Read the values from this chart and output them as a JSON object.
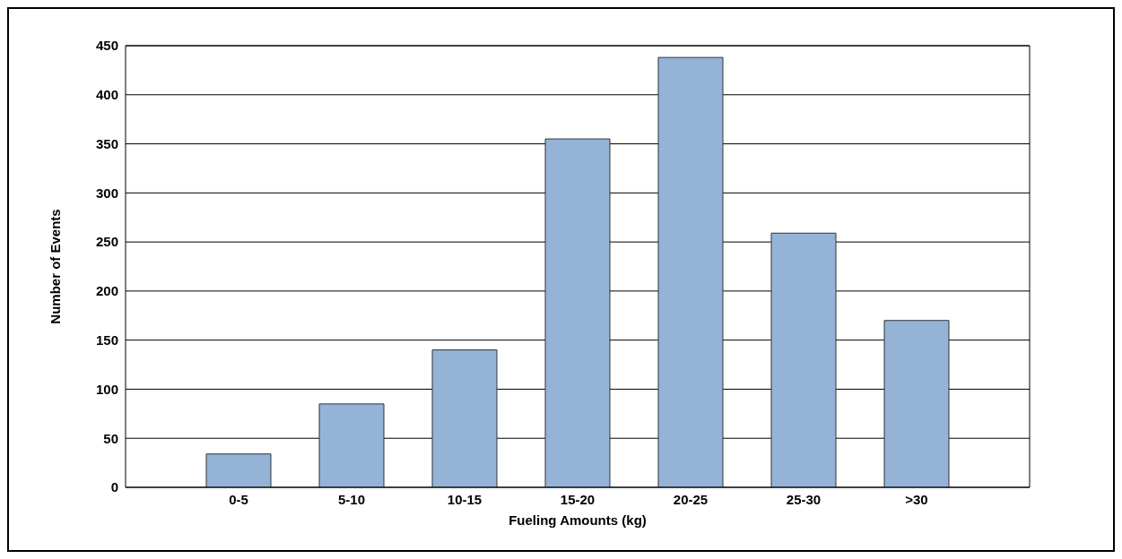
{
  "chart_data": {
    "type": "bar",
    "xlabel": "Fueling Amounts (kg)",
    "ylabel": "Number of Events",
    "categories": [
      "0-5",
      "5-10",
      "10-15",
      "15-20",
      "20-25",
      "25-30",
      ">30"
    ],
    "values": [
      34,
      85,
      140,
      355,
      438,
      259,
      170
    ],
    "color": "#95b3d7",
    "ylim": [
      0,
      450
    ],
    "yticks": [
      0,
      50,
      100,
      150,
      200,
      250,
      300,
      350,
      400,
      450
    ],
    "grid": "y"
  }
}
